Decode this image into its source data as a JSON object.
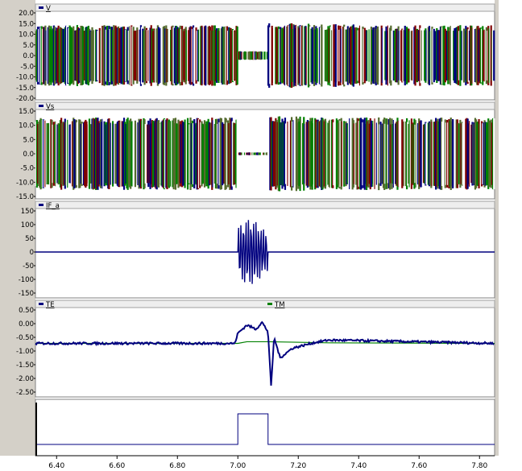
{
  "colors": {
    "bg": "#ffffff",
    "panel_gray": "#d4d0c8",
    "plot_border": "#000000",
    "trace_blue": "#00007f",
    "trace_green": "#008000",
    "trace_red": "#800000",
    "trace_olive": "#556b2f",
    "trace_white": "#ffffff",
    "title_bar": "#eeeeee"
  },
  "chart_data": [
    {
      "type": "line",
      "title": "V",
      "legend": [
        "V"
      ],
      "ylim": [
        -20,
        20
      ],
      "y_ticks": [
        "20.0",
        "15.0",
        "10.0",
        "5.0",
        "0.0",
        "-5.0",
        "-10.0",
        "-15.0",
        "-20.0"
      ],
      "series": [
        {
          "name": "V",
          "description_x": [
            6.33,
            7.0,
            7.07,
            7.13,
            7.85
          ],
          "envelope_pos": [
            14,
            14,
            2,
            15,
            14
          ],
          "envelope_neg": [
            -14,
            -14,
            -2,
            -15,
            -14
          ]
        }
      ]
    },
    {
      "type": "line",
      "title": "Vs",
      "legend": [
        "Vs"
      ],
      "ylim": [
        -15,
        15
      ],
      "y_ticks": [
        "15.0",
        "10.0",
        "5.0",
        "0.0",
        "-5.0",
        "-10.0",
        "-15.0"
      ],
      "series": [
        {
          "name": "Vs",
          "description_x": [
            6.33,
            7.0,
            7.07,
            7.13,
            7.85
          ],
          "envelope_pos": [
            12.5,
            12.5,
            0.5,
            13,
            12.5
          ],
          "envelope_neg": [
            -12.5,
            -12.5,
            -0.5,
            -13,
            -12.5
          ]
        }
      ]
    },
    {
      "type": "line",
      "title": "IF_a",
      "legend": [
        "IF_a"
      ],
      "ylim": [
        -150,
        150
      ],
      "y_ticks": [
        "150",
        "100",
        "50",
        "0",
        "-50",
        "-100",
        "-150"
      ],
      "series": [
        {
          "name": "IF_a",
          "x": [
            6.33,
            7.0,
            7.1,
            7.85
          ],
          "fault_amplitude": 120
        }
      ]
    },
    {
      "type": "line",
      "title": "TE / TM",
      "legend": [
        "TE",
        "TM"
      ],
      "ylim": [
        -2.5,
        0.5
      ],
      "y_ticks": [
        "0.50",
        "0.00",
        "-0.50",
        "-1.00",
        "-1.50",
        "-2.00",
        "-2.50"
      ],
      "series": [
        {
          "name": "TE",
          "x": [
            6.33,
            6.99,
            7.0,
            7.03,
            7.06,
            7.08,
            7.1,
            7.11,
            7.12,
            7.14,
            7.18,
            7.25,
            7.3,
            7.4,
            7.85
          ],
          "y": [
            -0.72,
            -0.72,
            -0.35,
            -0.05,
            -0.2,
            0.05,
            -0.3,
            -2.3,
            -0.5,
            -1.25,
            -0.9,
            -0.7,
            -0.6,
            -0.62,
            -0.72
          ]
        },
        {
          "name": "TM",
          "x": [
            6.33,
            7.0,
            7.03,
            7.1,
            7.3,
            7.85
          ],
          "y": [
            -0.72,
            -0.72,
            -0.66,
            -0.66,
            -0.7,
            -0.72
          ]
        }
      ]
    },
    {
      "type": "line",
      "title": "",
      "legend": [],
      "ylim": [
        0,
        1
      ],
      "series": [
        {
          "name": "",
          "x": [
            6.33,
            7.0,
            7.0,
            7.1,
            7.1,
            7.85
          ],
          "y": [
            0,
            0,
            1,
            1,
            0,
            0
          ]
        }
      ]
    }
  ],
  "x_axis": {
    "xlim": [
      6.33,
      7.85
    ],
    "tick_values": [
      6.4,
      6.6,
      6.8,
      7.0,
      7.2,
      7.4,
      7.6,
      7.8
    ],
    "tick_labels": [
      "6.40",
      "6.60",
      "6.80",
      "7.00",
      "7.20",
      "7.40",
      "7.60",
      "7.80"
    ]
  }
}
